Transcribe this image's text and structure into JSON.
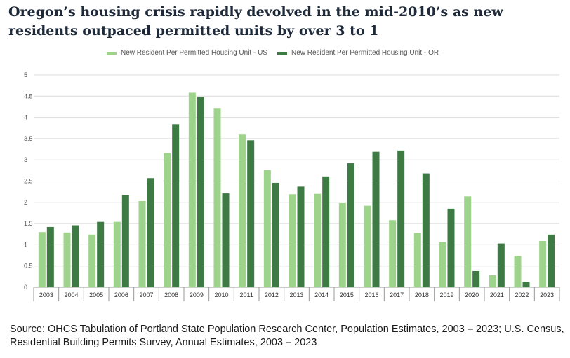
{
  "title": "Oregon’s housing crisis rapidly devolved in the mid-2010’s as new residents outpaced permitted units by over 3 to 1",
  "source": "Source: OHCS Tabulation of Portland State Population Research Center, Population Estimates, 2003 – 2023; U.S. Census, Residential Building Permits Survey, Annual Estimates, 2003 – 2023",
  "colors": {
    "us": "#9dd38a",
    "or": "#3e7a44",
    "grid": "#dcdcdc",
    "axis": "#999999",
    "tick_text": "#555555"
  },
  "chart_data": {
    "type": "bar",
    "title": "",
    "xlabel": "",
    "ylabel": "",
    "ylim": [
      0,
      5
    ],
    "yticks": [
      "0",
      "0.5",
      "1",
      "1.5",
      "2",
      "2.5",
      "3",
      "3.5",
      "4",
      "4.5",
      "5"
    ],
    "categories": [
      "2003",
      "2004",
      "2005",
      "2006",
      "2007",
      "2008",
      "2009",
      "2010",
      "2011",
      "2012",
      "2013",
      "2014",
      "2015",
      "2016",
      "2017",
      "2018",
      "2019",
      "2020",
      "2021",
      "2022",
      "2023"
    ],
    "series": [
      {
        "name": "New Resident Per Permitted Housing Unit - US",
        "color_key": "us",
        "values": [
          1.3,
          1.29,
          1.24,
          1.54,
          2.03,
          3.16,
          4.58,
          4.22,
          3.61,
          2.76,
          2.19,
          2.2,
          1.98,
          1.92,
          1.58,
          1.28,
          1.06,
          2.14,
          0.28,
          0.74,
          1.09
        ]
      },
      {
        "name": "New Resident Per Permitted Housing Unit - OR",
        "color_key": "or",
        "values": [
          1.42,
          1.46,
          1.54,
          2.17,
          2.57,
          3.84,
          4.48,
          2.21,
          3.46,
          2.46,
          2.37,
          2.61,
          2.92,
          3.19,
          3.22,
          2.68,
          1.85,
          0.38,
          1.03,
          0.13,
          1.24
        ]
      }
    ],
    "grid": "horizontal",
    "legend": "top-left"
  }
}
